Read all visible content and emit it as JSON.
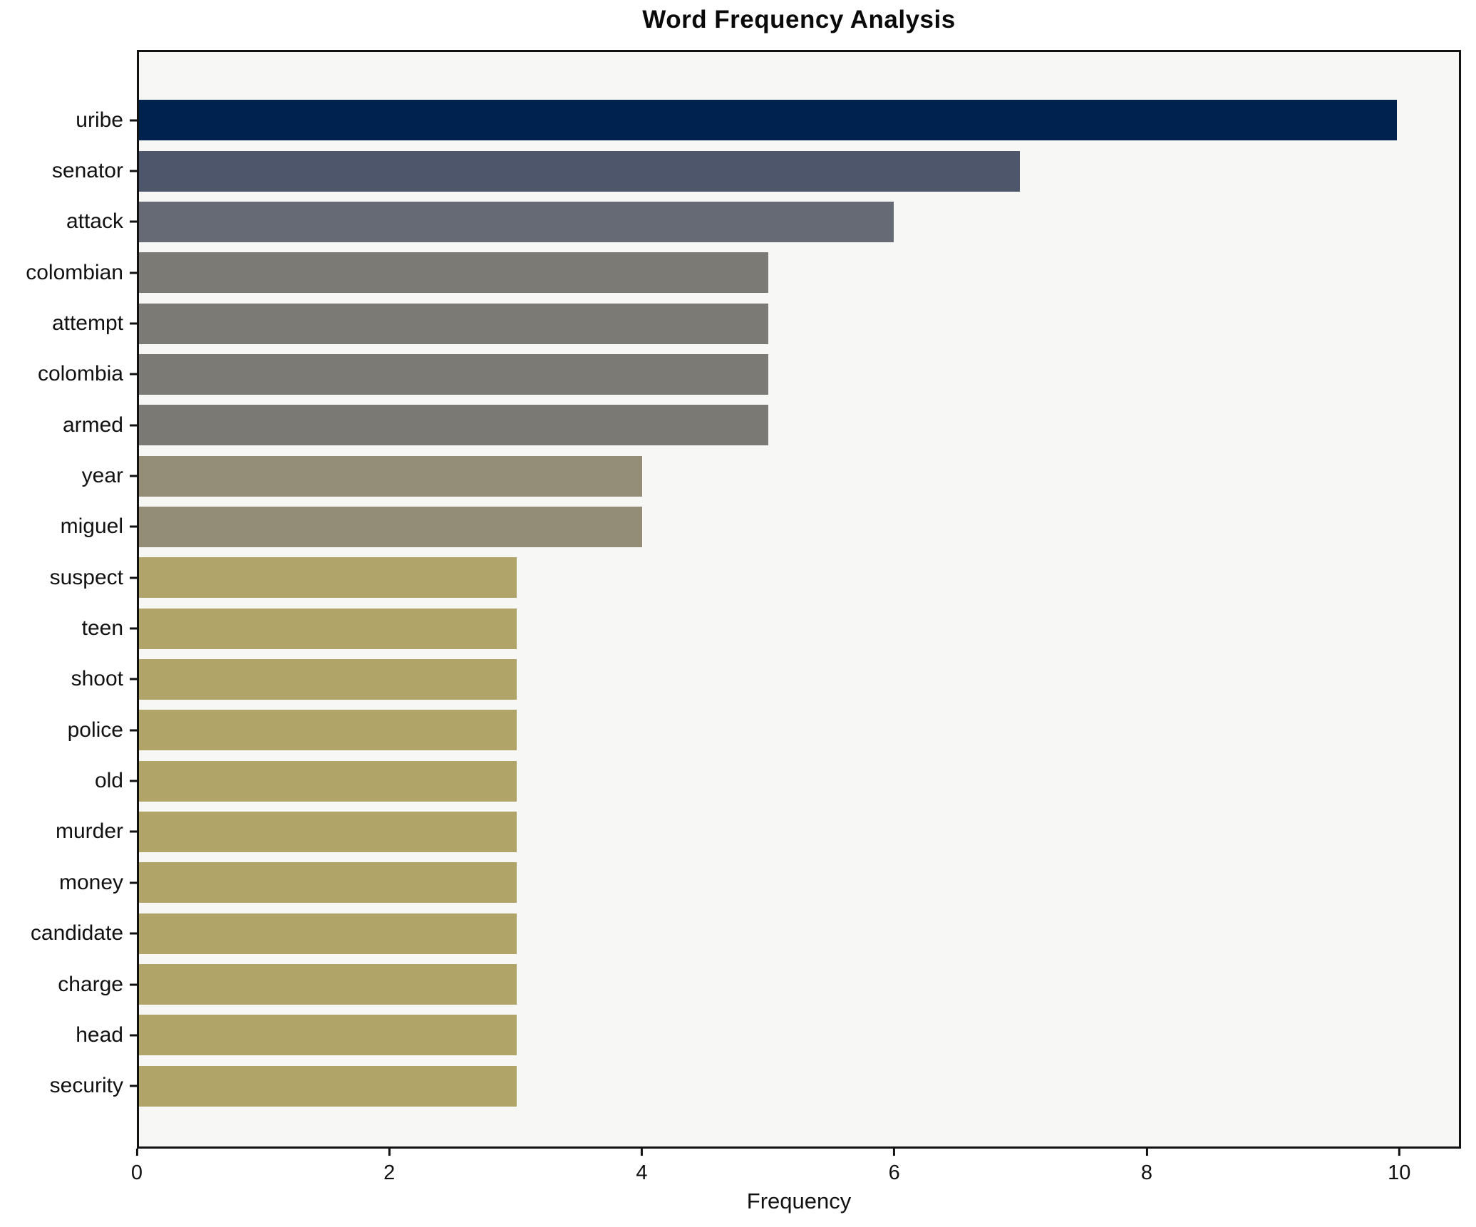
{
  "figure": {
    "title": "Word Frequency Analysis"
  },
  "chart_data": {
    "type": "bar",
    "orientation": "horizontal",
    "title": "Word Frequency Analysis",
    "xlabel": "Frequency",
    "ylabel": "",
    "categories": [
      "uribe",
      "senator",
      "attack",
      "colombian",
      "attempt",
      "colombia",
      "armed",
      "year",
      "miguel",
      "suspect",
      "teen",
      "shoot",
      "police",
      "old",
      "murder",
      "money",
      "candidate",
      "charge",
      "head",
      "security"
    ],
    "values": [
      10,
      7,
      6,
      5,
      5,
      5,
      5,
      4,
      4,
      3,
      3,
      3,
      3,
      3,
      3,
      3,
      3,
      3,
      3,
      3
    ],
    "bar_colors": [
      "#00224e",
      "#4e566b",
      "#656a74",
      "#7b7a75",
      "#7b7a75",
      "#7b7a75",
      "#7a7974",
      "#948e78",
      "#938d77",
      "#b0a46a",
      "#b0a468",
      "#b0a468",
      "#b0a468",
      "#b0a468",
      "#b0a468",
      "#b0a468",
      "#b0a468",
      "#b0a468",
      "#b0a468",
      "#b0a468"
    ],
    "xticks": [
      0,
      2,
      4,
      6,
      8,
      10
    ],
    "xlim": [
      0,
      10.49
    ],
    "grid": false,
    "legend_position": "none",
    "figure_bg": "#ffffff",
    "plot_bg": "#f7f7f5",
    "spine_color": "#121212",
    "text_color": "#111111"
  }
}
